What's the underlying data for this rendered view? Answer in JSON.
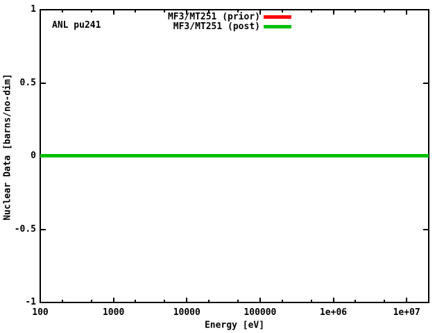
{
  "annotation": "ANL pu241",
  "axes": {
    "xlabel": "Energy [eV]",
    "ylabel": "Nuclear Data [barns/no-dim]"
  },
  "legend": [
    {
      "label": "MF3/MT251 (prior)",
      "color": "#ff0000"
    },
    {
      "label": "MF3/MT251 (post)",
      "color": "#00c000"
    }
  ],
  "chart_data": {
    "type": "line",
    "title": "",
    "annotations": [
      "ANL pu241"
    ],
    "xlabel": "Energy [eV]",
    "ylabel": "Nuclear Data [barns/no-dim]",
    "x_scale": "log",
    "y_scale": "linear",
    "xlim": [
      100,
      20000000
    ],
    "ylim": [
      -1,
      1
    ],
    "grid": false,
    "legend_position": "top-center-inside",
    "x_ticks": [
      {
        "value": 100,
        "label": "100"
      },
      {
        "value": 1000,
        "label": "1000"
      },
      {
        "value": 10000,
        "label": "10000"
      },
      {
        "value": 100000,
        "label": "100000"
      },
      {
        "value": 1000000,
        "label": "1e+06"
      },
      {
        "value": 10000000,
        "label": "1e+07"
      }
    ],
    "x_minor_ticks": [
      200,
      500,
      2000,
      5000,
      20000,
      50000,
      200000,
      500000,
      2000000,
      5000000
    ],
    "y_ticks": [
      {
        "value": 1,
        "label": "1"
      },
      {
        "value": 0.5,
        "label": "0.5"
      },
      {
        "value": 0,
        "label": "0"
      },
      {
        "value": -0.5,
        "label": "-0.5"
      },
      {
        "value": -1,
        "label": "-1"
      }
    ],
    "series": [
      {
        "name": "MF3/MT251 (prior)",
        "color": "#ff0000",
        "x": [
          100,
          20000000
        ],
        "y": [
          0,
          0
        ]
      },
      {
        "name": "MF3/MT251 (post)",
        "color": "#00c000",
        "x": [
          100,
          20000000
        ],
        "y": [
          0,
          0
        ]
      }
    ]
  }
}
